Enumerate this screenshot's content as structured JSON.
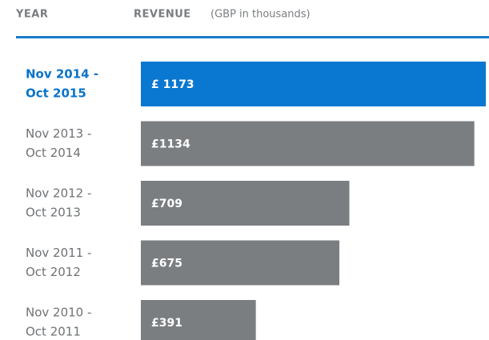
{
  "chart_data": {
    "type": "bar",
    "orientation": "horizontal",
    "header": {
      "category_label": "YEAR",
      "value_label": "REVENUE",
      "unit_label": "(GBP in thousands)"
    },
    "categories": [
      [
        "Nov 2014 -",
        "Oct 2015"
      ],
      [
        "Nov 2013 -",
        "Oct 2014"
      ],
      [
        "Nov 2012 -",
        "Oct 2013"
      ],
      [
        "Nov 2011 -",
        "Oct 2012"
      ],
      [
        "Nov 2010 -",
        "Oct 2011"
      ]
    ],
    "values": [
      1173,
      1134,
      709,
      675,
      391
    ],
    "value_labels": [
      "£ 1173",
      "£1134",
      "£709",
      "£675",
      "£391"
    ],
    "colors": [
      "#0a77d0",
      "#7b7e81",
      "#7b7e81",
      "#7b7e81",
      "#7b7e81"
    ],
    "highlight": 0,
    "xlim": [
      0,
      1173
    ]
  }
}
